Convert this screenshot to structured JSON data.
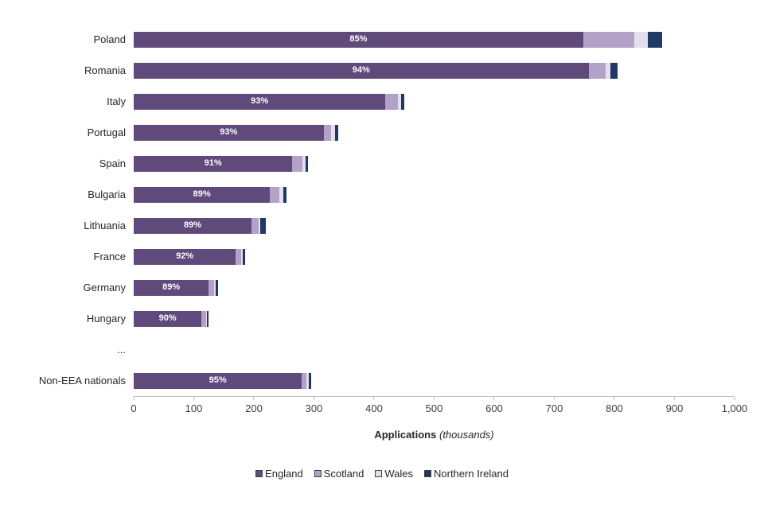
{
  "chart": {
    "xaxis_title_main": "Applications",
    "xaxis_title_note": "(thousands)"
  },
  "chart_data": {
    "type": "bar",
    "orientation": "horizontal",
    "stacked": true,
    "title": "",
    "xlabel": "Applications (thousands)",
    "ylabel": "",
    "xlim": [
      0,
      1000
    ],
    "grid": false,
    "legend_position": "bottom",
    "ticks": [
      "0",
      "100",
      "200",
      "300",
      "400",
      "500",
      "600",
      "700",
      "800",
      "900",
      "1,000"
    ],
    "categories": [
      "Poland",
      "Romania",
      "Italy",
      "Portugal",
      "Spain",
      "Bulgaria",
      "Lithuania",
      "France",
      "Germany",
      "Hungary",
      "...",
      "Non-EEA nationals"
    ],
    "series": [
      {
        "name": "England",
        "color": "#604A7B",
        "values": [
          748,
          757,
          419,
          316,
          264,
          227,
          196,
          170,
          125,
          113,
          0,
          280
        ]
      },
      {
        "name": "Scotland",
        "color": "#B2A2C7",
        "values": [
          85,
          28,
          21,
          13,
          17,
          16,
          12,
          9,
          9,
          7,
          0,
          8
        ]
      },
      {
        "name": "Wales",
        "color": "#E4DFEC",
        "values": [
          22,
          8,
          5,
          6,
          5,
          6,
          3,
          3,
          3,
          2,
          0,
          3
        ]
      },
      {
        "name": "Northern Ireland",
        "color": "#1F3864",
        "values": [
          25,
          12,
          5,
          5,
          4,
          6,
          9,
          3,
          3,
          3,
          0,
          4
        ]
      }
    ],
    "bar_labels": [
      "85%",
      "94%",
      "93%",
      "93%",
      "91%",
      "89%",
      "89%",
      "92%",
      "89%",
      "90%",
      "",
      "95%"
    ]
  }
}
